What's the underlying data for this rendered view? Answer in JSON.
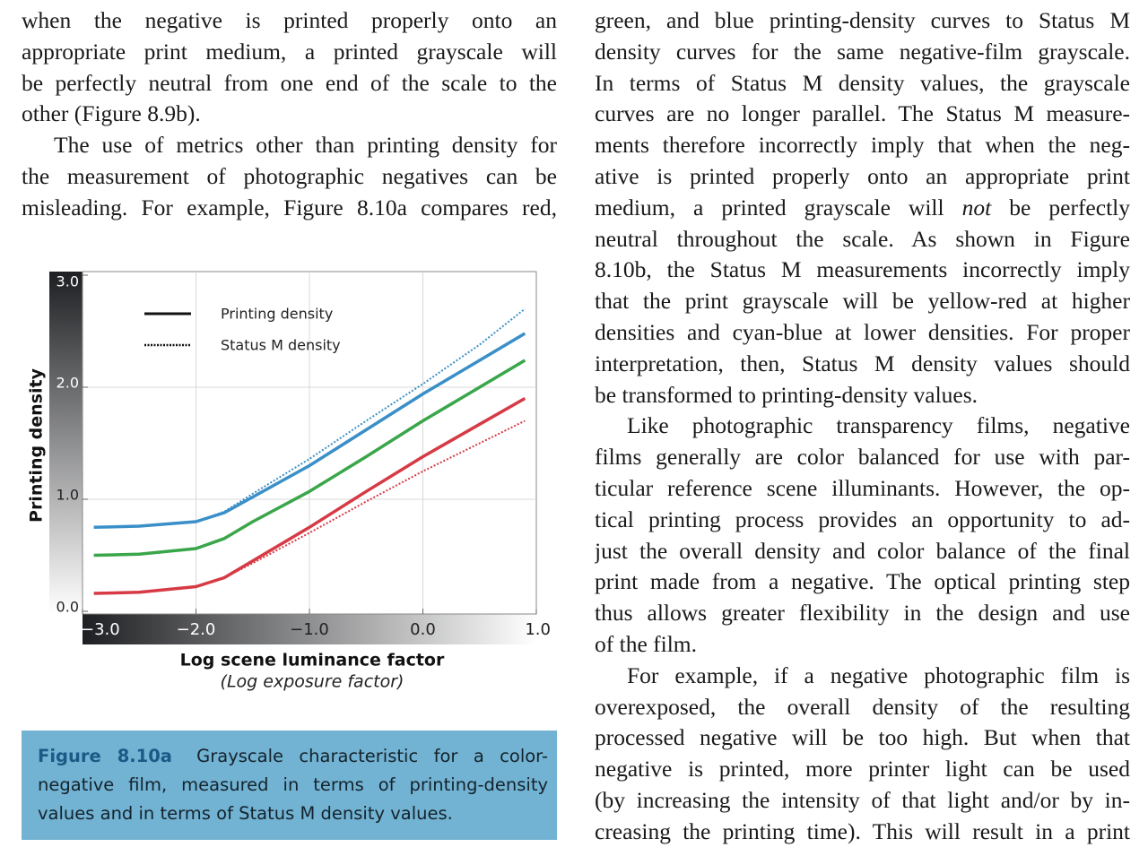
{
  "columns": [
    {
      "paragraphs": [
        {
          "indent": false,
          "continues": false,
          "lines": [
            "when the negative is printed properly onto an",
            "appropriate print medium, a printed grayscale will",
            "be perfectly neutral from one end of the scale to the",
            "other (Figure 8.9b)."
          ]
        },
        {
          "indent": true,
          "continues": true,
          "lines": [
            "The use of metrics other than printing density for",
            "the measurement of photographic negatives can be",
            "misleading. For example, Figure 8.10a compares red,"
          ]
        }
      ]
    },
    {
      "paragraphs": [
        {
          "indent": false,
          "continues": false,
          "lines": [
            "green, and blue printing-density curves to Status M",
            "density curves for the same negative-film grayscale.",
            "In terms of Status M density values, the grayscale",
            "curves are no longer parallel. The Status M measure-",
            "ments therefore incorrectly imply that when the neg-",
            "ative is printed properly onto an appropriate print",
            {
              "before": "medium, a printed grayscale will ",
              "italic": "not",
              "after": " be perfectly"
            },
            "neutral throughout the scale. As shown in Figure",
            "8.10b, the Status M measurements incorrectly imply",
            "that the print grayscale will be yellow-red at higher",
            "densities and cyan-blue at lower densities. For proper",
            "interpretation, then, Status M density values should",
            "be transformed to printing-density values."
          ]
        },
        {
          "indent": true,
          "continues": false,
          "lines": [
            "Like photographic transparency films, negative",
            "films generally are color balanced for use with par-",
            "ticular reference scene illuminants. However, the op-",
            "tical printing process provides an opportunity to ad-",
            "just the overall density and color balance of the final",
            "print made from a negative. The optical printing step",
            "thus allows greater flexibility in the design and use",
            "of the film."
          ]
        },
        {
          "indent": true,
          "continues": true,
          "lines": [
            "For example, if a negative photographic film is",
            "overexposed, the overall density of the resulting",
            "processed negative will be too high. But when that",
            "negative is printed, more printer light can be used",
            "(by increasing the intensity of that light and/or by in-",
            "creasing the printing time). This will result in a print"
          ]
        }
      ]
    }
  ],
  "chart_data": {
    "type": "line",
    "x_label": "Log scene luminance factor",
    "x_sublabel": "(Log exposure factor)",
    "y_label": "Printing density",
    "legend": [
      {
        "label": "Printing density",
        "style": "solid"
      },
      {
        "label": "Status M density",
        "style": "dotted"
      }
    ],
    "x": [
      -2.9,
      -2.5,
      -2.0,
      -1.75,
      -1.5,
      -1.0,
      -0.5,
      0.0,
      0.5,
      0.9
    ],
    "series": [
      {
        "color": "#3a8fc8",
        "style": "dotted",
        "values": [
          0.75,
          0.76,
          0.8,
          0.89,
          1.05,
          1.36,
          1.7,
          2.03,
          2.38,
          2.7
        ]
      },
      {
        "color": "#3a8fc8",
        "style": "solid",
        "values": [
          0.75,
          0.76,
          0.8,
          0.88,
          1.02,
          1.3,
          1.62,
          1.94,
          2.24,
          2.48
        ]
      },
      {
        "color": "#3aa64a",
        "style": "dotted",
        "values": [
          0.5,
          0.51,
          0.56,
          0.65,
          0.8,
          1.07,
          1.38,
          1.7,
          2.0,
          2.24
        ]
      },
      {
        "color": "#3aa64a",
        "style": "solid",
        "values": [
          0.5,
          0.51,
          0.56,
          0.65,
          0.8,
          1.07,
          1.38,
          1.7,
          2.0,
          2.24
        ]
      },
      {
        "color": "#d63a45",
        "style": "dotted",
        "values": [
          0.16,
          0.17,
          0.22,
          0.3,
          0.43,
          0.7,
          0.98,
          1.25,
          1.5,
          1.7
        ]
      },
      {
        "color": "#d63a45",
        "style": "solid",
        "values": [
          0.16,
          0.17,
          0.22,
          0.3,
          0.45,
          0.75,
          1.07,
          1.38,
          1.67,
          1.9
        ]
      }
    ],
    "xlim": [
      -3,
      1
    ],
    "ylim": [
      0,
      3
    ],
    "xticks": [
      {
        "value": -3,
        "label": "−3.0"
      },
      {
        "value": -2,
        "label": "−2.0"
      },
      {
        "value": -1,
        "label": "−1.0"
      },
      {
        "value": 0,
        "label": "0.0"
      },
      {
        "value": 1,
        "label": "1.0"
      }
    ],
    "yticks": [
      {
        "value": 0,
        "label": "0.0"
      },
      {
        "value": 1,
        "label": "1.0"
      },
      {
        "value": 2,
        "label": "2.0"
      },
      {
        "value": 3,
        "label": "3.0"
      }
    ],
    "grid": true
  },
  "caption": {
    "label": "Figure 8.10a",
    "lines": [
      "Grayscale characteristic for a color-",
      "negative film, measured in terms of printing-density",
      "values and in terms of Status M density values."
    ]
  }
}
